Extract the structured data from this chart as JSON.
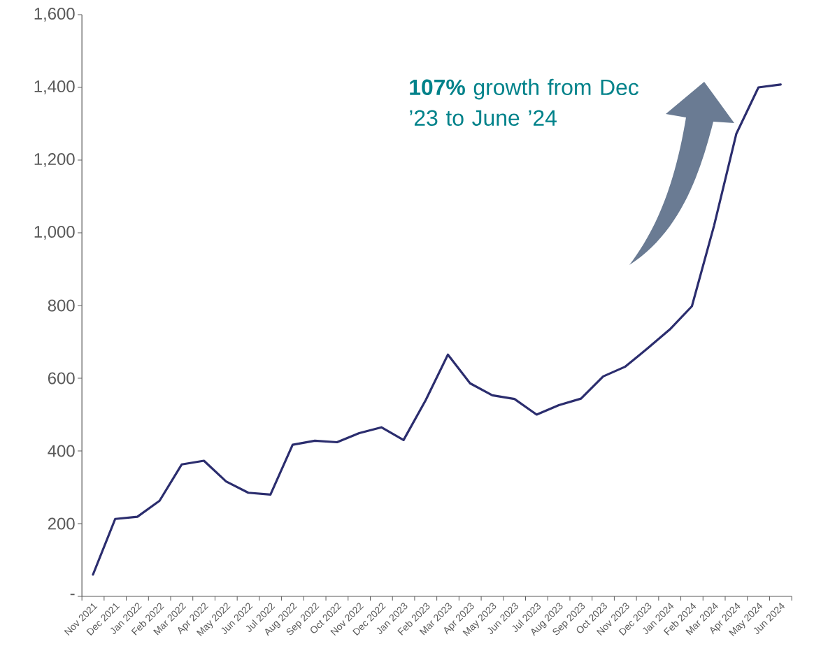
{
  "chart_data": {
    "type": "line",
    "categories": [
      "Nov 2021",
      "Dec 2021",
      "Jan 2022",
      "Feb 2022",
      "Mar 2022",
      "Apr 2022",
      "May 2022",
      "Jun 2022",
      "Jul 2022",
      "Aug 2022",
      "Sep 2022",
      "Oct 2022",
      "Nov 2022",
      "Dec 2022",
      "Jan 2023",
      "Feb 2023",
      "Mar 2023",
      "Apr 2023",
      "May 2023",
      "Jun 2023",
      "Jul 2023",
      "Aug 2023",
      "Sep 2023",
      "Oct 2023",
      "Nov 2023",
      "Dec 2023",
      "Jan 2024",
      "Feb 2024",
      "Mar 2024",
      "Apr 2024",
      "May 2024",
      "Jun 2024"
    ],
    "values": [
      60,
      213,
      219,
      263,
      363,
      373,
      316,
      285,
      280,
      417,
      428,
      424,
      449,
      465,
      430,
      540,
      665,
      586,
      553,
      543,
      500,
      526,
      544,
      605,
      632,
      682,
      734,
      798,
      1020,
      1272,
      1400,
      1408
    ],
    "color": "#2b2d6e",
    "ylim": [
      0,
      1600
    ],
    "yticks": [
      {
        "value": 0,
        "label": "-"
      },
      {
        "value": 200,
        "label": "200"
      },
      {
        "value": 400,
        "label": "400"
      },
      {
        "value": 600,
        "label": "600"
      },
      {
        "value": 800,
        "label": "800"
      },
      {
        "value": 1000,
        "label": "1,000"
      },
      {
        "value": 1200,
        "label": "1,200"
      },
      {
        "value": 1400,
        "label": "1,400"
      },
      {
        "value": 1600,
        "label": "1,600"
      }
    ],
    "annotations": [
      "**107%** growth from Dec ’23 to June ’24"
    ]
  }
}
